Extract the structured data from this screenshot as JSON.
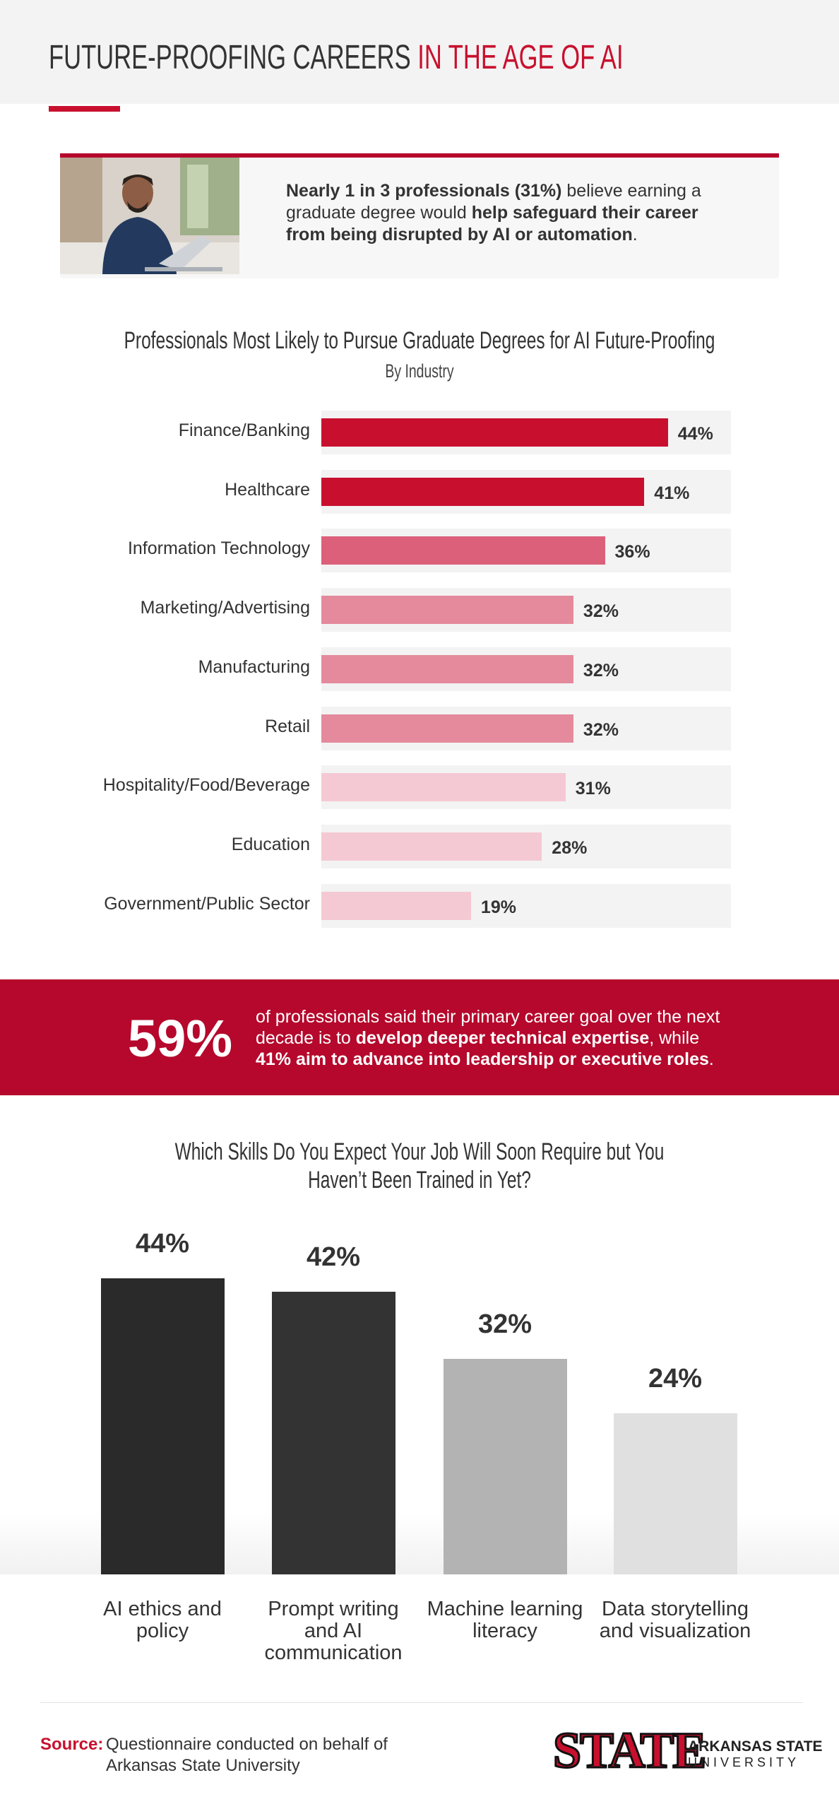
{
  "header": {
    "title_parts": [
      {
        "text": "FUTURE-PROOFING CAREERS ",
        "color": "#333333"
      },
      {
        "text": "IN THE AGE OF AI",
        "color": "#c8102e"
      }
    ]
  },
  "callout": {
    "segments": [
      {
        "text": "Nearly 1 in 3 professionals (31%)",
        "bold": true
      },
      {
        "text": " believe earning a graduate degree would ",
        "bold": false
      },
      {
        "text": "help safeguard their career from being disrupted by AI or automation",
        "bold": true
      },
      {
        "text": ".",
        "bold": false
      }
    ]
  },
  "chart_data": [
    {
      "type": "bar",
      "orientation": "horizontal",
      "title": "Professionals Most Likely to Pursue Graduate Degrees for AI Future-Proofing",
      "subtitle": "By Industry",
      "categories": [
        "Finance/Banking",
        "Healthcare",
        "Information Technology",
        "Marketing/Advertising",
        "Manufacturing",
        "Retail",
        "Hospitality/Food/Beverage",
        "Education",
        "Government/Public Sector"
      ],
      "values": [
        44,
        41,
        36,
        32,
        32,
        32,
        31,
        28,
        19
      ],
      "value_labels": [
        "44%",
        "41%",
        "36%",
        "32%",
        "32%",
        "32%",
        "31%",
        "28%",
        "19%"
      ],
      "colors": [
        "#c8102e",
        "#c8102e",
        "#dc607a",
        "#e48a9c",
        "#e48a9c",
        "#e48a9c",
        "#f4c9d3",
        "#f4c9d3",
        "#f4c9d3"
      ],
      "xlim": [
        0,
        52
      ]
    },
    {
      "type": "bar",
      "orientation": "vertical",
      "title": "Which Skills Do You Expect Your Job Will Soon Require but You Haven’t Been Trained in Yet?",
      "categories": [
        "AI ethics and policy",
        "Prompt writing and AI communication",
        "Machine learning literacy",
        "Data storytelling and visualization"
      ],
      "values": [
        44,
        42,
        32,
        24
      ],
      "value_labels": [
        "44%",
        "42%",
        "32%",
        "24%"
      ],
      "colors": [
        "#2a2a2a",
        "#333333",
        "#b3b3b3",
        "#e0e0e0"
      ],
      "ylim": [
        0,
        50
      ]
    }
  ],
  "banner": {
    "stat": "59%",
    "segments": [
      {
        "text": "of professionals said their primary career goal over the next decade is to ",
        "bold": false
      },
      {
        "text": "develop deeper technical expertise",
        "bold": true
      },
      {
        "text": ", while ",
        "bold": false
      },
      {
        "text": "41% aim to advance into leadership or executive roles",
        "bold": true
      },
      {
        "text": ".",
        "bold": false
      }
    ]
  },
  "footer": {
    "source_label": "Source:",
    "source_text": "Questionnaire conducted on behalf of Arkansas State University",
    "logo_mark": "STATE",
    "logo_line1": "ARKANSAS STATE",
    "logo_line2": "UNIVERSITY"
  }
}
